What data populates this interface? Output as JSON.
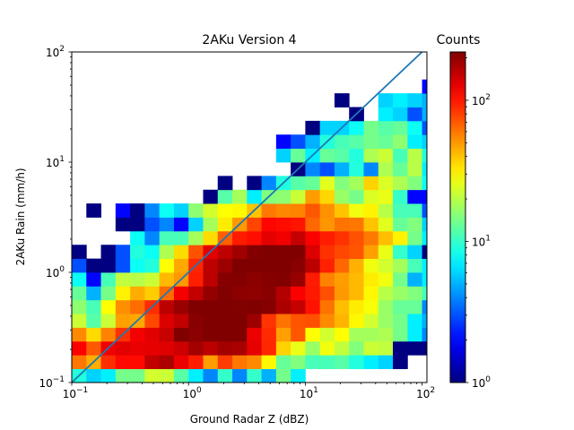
{
  "chart_data": {
    "type": "heatmap",
    "title": "2AKu Version 4",
    "xlabel": "Ground Radar Z (dBZ)",
    "ylabel": "2AKu Rain (mm/h)",
    "x_scale": "log",
    "y_scale": "log",
    "xlim": [
      0.1,
      110
    ],
    "ylim": [
      0.1,
      100
    ],
    "x_ticks": [
      {
        "base": "10",
        "exp": "−1",
        "value": 0.1
      },
      {
        "base": "10",
        "exp": "0",
        "value": 1
      },
      {
        "base": "10",
        "exp": "1",
        "value": 10
      },
      {
        "base": "10",
        "exp": "2",
        "value": 100
      }
    ],
    "y_ticks": [
      {
        "base": "10",
        "exp": "−1",
        "value": 0.1
      },
      {
        "base": "10",
        "exp": "0",
        "value": 1
      },
      {
        "base": "10",
        "exp": "1",
        "value": 10
      },
      {
        "base": "10",
        "exp": "2",
        "value": 100
      }
    ],
    "bins_per_decade": 8,
    "x_bin_start_log10": -1,
    "y_bin_start_log10": -1,
    "counts_rows_bottom_to_top": [
      [
        9,
        6,
        7,
        14,
        14,
        23,
        22,
        12,
        7,
        4,
        10,
        4,
        10,
        5,
        14,
        7,
        0,
        0,
        0,
        0,
        0,
        0,
        0,
        0,
        0,
        0,
        0,
        0,
        0,
        0,
        0,
        0
      ],
      [
        60,
        45,
        88,
        107,
        107,
        155,
        173,
        124,
        96,
        49,
        81,
        60,
        54,
        30,
        13,
        15,
        11,
        11,
        12,
        9,
        7,
        6,
        1,
        0,
        0,
        0,
        0,
        0,
        0,
        0,
        0,
        0
      ],
      [
        114,
        70,
        120,
        130,
        125,
        127,
        133,
        146,
        182,
        160,
        180,
        177,
        127,
        91,
        37,
        26,
        17,
        27,
        21,
        15,
        22,
        21,
        1,
        1,
        1,
        1,
        0,
        0,
        0,
        0,
        0,
        0
      ],
      [
        54,
        35,
        56,
        87,
        118,
        130,
        151,
        240,
        207,
        230,
        252,
        229,
        123,
        90,
        48,
        71,
        29,
        23,
        29,
        18,
        18,
        19,
        14,
        7,
        4,
        3,
        0,
        0,
        0,
        0,
        0,
        0
      ],
      [
        22,
        12,
        22,
        48,
        46,
        77,
        134,
        155,
        209,
        230,
        220,
        243,
        189,
        85,
        61,
        72,
        74,
        54,
        43,
        30,
        23,
        17,
        14,
        7,
        5,
        0,
        3,
        0,
        0,
        0,
        0,
        0
      ],
      [
        16,
        11,
        29,
        53,
        63,
        89,
        160,
        192,
        236,
        254,
        253,
        218,
        220,
        212,
        174,
        152,
        102,
        61,
        41,
        32,
        28,
        17,
        13,
        13,
        4,
        4,
        2,
        2,
        0,
        0,
        0,
        0
      ],
      [
        13,
        5,
        14,
        31,
        45,
        38,
        64,
        118,
        155,
        197,
        218,
        205,
        203,
        208,
        166,
        114,
        98,
        74,
        50,
        42,
        30,
        20,
        17,
        15,
        11,
        0,
        2,
        0,
        0,
        0,
        0,
        0
      ],
      [
        8,
        2,
        11,
        21,
        20,
        22,
        42,
        50,
        95,
        160,
        213,
        215,
        205,
        212,
        217,
        193,
        97,
        56,
        49,
        42,
        32,
        27,
        14,
        5,
        7,
        1,
        0,
        0,
        0,
        0,
        0,
        0
      ],
      [
        3,
        1,
        1,
        3,
        8,
        9,
        29,
        46,
        92,
        159,
        189,
        226,
        235,
        227,
        242,
        210,
        161,
        94,
        65,
        44,
        27,
        23,
        18,
        11,
        7,
        3,
        0,
        0,
        0,
        0,
        0,
        0
      ],
      [
        1,
        0,
        1,
        3,
        9,
        8,
        19,
        35,
        73,
        129,
        158,
        184,
        215,
        247,
        232,
        223,
        135,
        87,
        77,
        72,
        48,
        26,
        10,
        6,
        1,
        1,
        0,
        0,
        0,
        0,
        0,
        0
      ],
      [
        0,
        0,
        0,
        0,
        8,
        4,
        11,
        11,
        18,
        35,
        68,
        97,
        104,
        129,
        120,
        153,
        115,
        96,
        86,
        73,
        59,
        41,
        31,
        14,
        7,
        1,
        0,
        0,
        0,
        0,
        0,
        0
      ],
      [
        0,
        0,
        0,
        1,
        1,
        3,
        4,
        2,
        6,
        18,
        32,
        50,
        78,
        109,
        106,
        101,
        65,
        51,
        61,
        60,
        40,
        25,
        13,
        15,
        6,
        6,
        2,
        0,
        0,
        0,
        0,
        0
      ],
      [
        0,
        1,
        0,
        2,
        1,
        4,
        8,
        6,
        16,
        23,
        29,
        30,
        40,
        59,
        55,
        56,
        71,
        52,
        40,
        27,
        31,
        20,
        11,
        11,
        3,
        3,
        1,
        0,
        1,
        0,
        0,
        0
      ],
      [
        0,
        0,
        0,
        0,
        0,
        0,
        0,
        0,
        0,
        1,
        12,
        18,
        7,
        15,
        16,
        22,
        49,
        36,
        17,
        14,
        24,
        26,
        10,
        2,
        2,
        2,
        1,
        0,
        0,
        0,
        0,
        0
      ],
      [
        0,
        0,
        0,
        0,
        0,
        0,
        0,
        0,
        0,
        0,
        1,
        0,
        1,
        4,
        9,
        12,
        13,
        25,
        15,
        18,
        37,
        24,
        19,
        15,
        8,
        3,
        3,
        0,
        0,
        0,
        0,
        0
      ],
      [
        0,
        0,
        0,
        0,
        0,
        0,
        0,
        0,
        0,
        0,
        0,
        0,
        0,
        0,
        0,
        1,
        4,
        3,
        5,
        9,
        4,
        19,
        13,
        20,
        7,
        4,
        1,
        0,
        0,
        0,
        0,
        0
      ],
      [
        0,
        0,
        0,
        0,
        0,
        0,
        0,
        0,
        0,
        0,
        0,
        0,
        0,
        0,
        6,
        13,
        7,
        13,
        12,
        9,
        19,
        22,
        11,
        20,
        9,
        5,
        4,
        0,
        0,
        0,
        0,
        0
      ],
      [
        0,
        0,
        0,
        0,
        0,
        0,
        0,
        0,
        0,
        0,
        0,
        0,
        0,
        0,
        2,
        3,
        5,
        9,
        11,
        12,
        14,
        13,
        16,
        7,
        6,
        3,
        4,
        0,
        0,
        0,
        0,
        0
      ],
      [
        0,
        0,
        0,
        0,
        0,
        0,
        0,
        0,
        0,
        0,
        0,
        0,
        0,
        0,
        0,
        0,
        1,
        6,
        6,
        8,
        14,
        12,
        13,
        8,
        3,
        5,
        2,
        1,
        0,
        0,
        0,
        0
      ],
      [
        0,
        0,
        0,
        0,
        0,
        0,
        0,
        0,
        0,
        0,
        0,
        0,
        0,
        0,
        0,
        0,
        0,
        0,
        0,
        1,
        0,
        7,
        6,
        3,
        5,
        4,
        1,
        0,
        0,
        0,
        0,
        0
      ],
      [
        0,
        0,
        0,
        0,
        0,
        0,
        0,
        0,
        0,
        0,
        0,
        0,
        0,
        0,
        0,
        0,
        0,
        0,
        1,
        0,
        0,
        6,
        7,
        6,
        5,
        3,
        2,
        1,
        0,
        0,
        0,
        0
      ],
      [
        0,
        0,
        0,
        0,
        0,
        0,
        0,
        0,
        0,
        0,
        0,
        0,
        0,
        0,
        0,
        0,
        0,
        0,
        0,
        0,
        0,
        0,
        0,
        0,
        2,
        3,
        2,
        1,
        0,
        0,
        0,
        0
      ],
      [
        0,
        0,
        0,
        0,
        0,
        0,
        0,
        0,
        0,
        0,
        0,
        0,
        0,
        0,
        0,
        0,
        0,
        0,
        0,
        0,
        0,
        0,
        0,
        0,
        0,
        0,
        0,
        0,
        0,
        0,
        0,
        0
      ],
      [
        0,
        0,
        0,
        0,
        0,
        0,
        0,
        0,
        0,
        0,
        0,
        0,
        0,
        0,
        0,
        0,
        0,
        0,
        0,
        0,
        0,
        0,
        0,
        0,
        0,
        0,
        0,
        0,
        0,
        0,
        0,
        0
      ]
    ],
    "reference_line": {
      "from": [
        0.1,
        0.1
      ],
      "to": [
        100,
        100
      ],
      "color": "#1f77b4"
    },
    "colorbar": {
      "label": "Counts",
      "scale": "log",
      "range": [
        1,
        220
      ],
      "colormap": "jet",
      "ticks": [
        {
          "base": "10",
          "exp": "0",
          "value": 1
        },
        {
          "base": "10",
          "exp": "1",
          "value": 10
        },
        {
          "base": "10",
          "exp": "2",
          "value": 100
        }
      ]
    },
    "grid": false,
    "legend": "none"
  }
}
